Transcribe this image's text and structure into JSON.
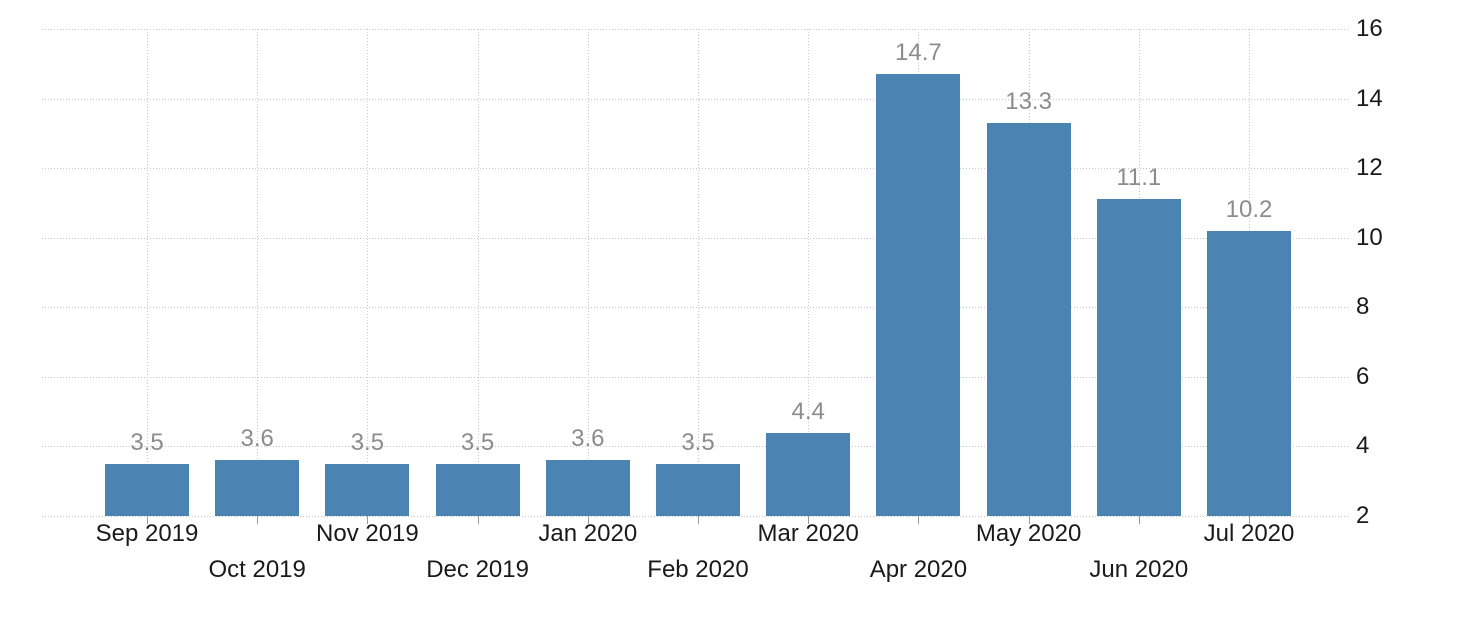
{
  "chart_data": {
    "type": "bar",
    "categories": [
      "Sep 2019",
      "Oct 2019",
      "Nov 2019",
      "Dec 2019",
      "Jan 2020",
      "Feb 2020",
      "Mar 2020",
      "Apr 2020",
      "May 2020",
      "Jun 2020",
      "Jul 2020"
    ],
    "values": [
      3.5,
      3.6,
      3.5,
      3.5,
      3.6,
      3.5,
      4.4,
      14.7,
      13.3,
      11.1,
      10.2
    ],
    "value_labels": [
      "3.5",
      "3.6",
      "3.5",
      "3.5",
      "3.6",
      "3.5",
      "4.4",
      "14.7",
      "13.3",
      "11.1",
      "10.2"
    ],
    "title": "",
    "xlabel": "",
    "ylabel": "",
    "ylim": [
      2,
      16
    ],
    "yticks": [
      16,
      14,
      12,
      10,
      8,
      6,
      4,
      2
    ],
    "y_axis_side": "right",
    "x_label_layout": "staggered-two-rows",
    "grid": {
      "horizontal": true,
      "vertical": true,
      "style": "dotted"
    },
    "legend": {
      "visible": false
    },
    "colors": {
      "bar": "#4b83b3",
      "value_label": "#8c8c8c",
      "axis_label": "#1a1a1a",
      "gridline": "#c8c8c8",
      "tick": "#999999",
      "background": "#ffffff"
    }
  }
}
